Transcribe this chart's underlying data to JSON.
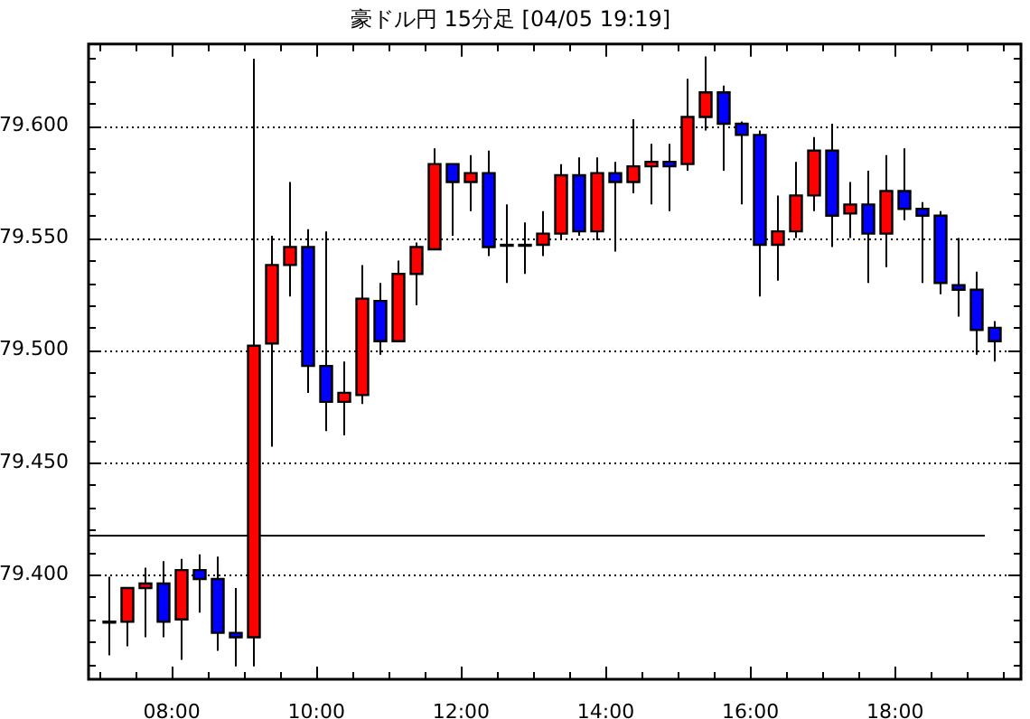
{
  "chart_data": {
    "type": "candlestick",
    "title": "豪ドル円 15分足 [04/05 19:19]",
    "x": [
      7.125,
      7.375,
      7.625,
      7.875,
      8.125,
      8.375,
      8.625,
      8.875,
      9.125,
      9.375,
      9.625,
      9.875,
      10.125,
      10.375,
      10.625,
      10.875,
      11.125,
      11.375,
      11.625,
      11.875,
      12.125,
      12.375,
      12.625,
      12.875,
      13.125,
      13.375,
      13.625,
      13.875,
      14.125,
      14.375,
      14.625,
      14.875,
      15.125,
      15.375,
      15.625,
      15.875,
      16.125,
      16.375,
      16.625,
      16.875,
      17.125,
      17.375,
      17.625,
      17.875,
      18.125,
      18.375,
      18.625,
      18.875,
      19.125,
      19.375
    ],
    "ohlc": [
      [
        79.379,
        79.399,
        79.364,
        79.379
      ],
      [
        79.379,
        79.394,
        79.368,
        79.394
      ],
      [
        79.394,
        79.403,
        79.372,
        79.396
      ],
      [
        79.396,
        79.406,
        79.372,
        79.379
      ],
      [
        79.38,
        79.407,
        79.362,
        79.402
      ],
      [
        79.402,
        79.409,
        79.383,
        79.398
      ],
      [
        79.398,
        79.408,
        79.366,
        79.374
      ],
      [
        79.374,
        79.394,
        79.359,
        79.372
      ],
      [
        79.372,
        79.63,
        79.359,
        79.502
      ],
      [
        79.503,
        79.551,
        79.457,
        79.538
      ],
      [
        79.538,
        79.575,
        79.524,
        79.546
      ],
      [
        79.546,
        79.554,
        79.481,
        79.493
      ],
      [
        79.493,
        79.553,
        79.464,
        79.477
      ],
      [
        79.477,
        79.495,
        79.462,
        79.481
      ],
      [
        79.48,
        79.538,
        79.476,
        79.523
      ],
      [
        79.522,
        79.53,
        79.498,
        79.504
      ],
      [
        79.504,
        79.54,
        79.504,
        79.534
      ],
      [
        79.534,
        79.548,
        79.52,
        79.546
      ],
      [
        79.545,
        79.59,
        79.545,
        79.583
      ],
      [
        79.583,
        79.583,
        79.551,
        79.575
      ],
      [
        79.575,
        79.587,
        79.562,
        79.579
      ],
      [
        79.579,
        79.589,
        79.542,
        79.546
      ],
      [
        79.547,
        79.565,
        79.53,
        79.547
      ],
      [
        79.547,
        79.557,
        79.534,
        79.547
      ],
      [
        79.547,
        79.562,
        79.542,
        79.552
      ],
      [
        79.552,
        79.583,
        79.549,
        79.578
      ],
      [
        79.578,
        79.586,
        79.551,
        79.553
      ],
      [
        79.553,
        79.586,
        79.549,
        79.579
      ],
      [
        79.579,
        79.584,
        79.544,
        79.575
      ],
      [
        79.575,
        79.603,
        79.57,
        79.582
      ],
      [
        79.582,
        79.592,
        79.565,
        79.584
      ],
      [
        79.584,
        79.592,
        79.562,
        79.582
      ],
      [
        79.583,
        79.621,
        79.58,
        79.604
      ],
      [
        79.604,
        79.631,
        79.598,
        79.615
      ],
      [
        79.615,
        79.618,
        79.58,
        79.601
      ],
      [
        79.601,
        79.602,
        79.565,
        79.596
      ],
      [
        79.596,
        79.598,
        79.524,
        79.547
      ],
      [
        79.547,
        79.569,
        79.531,
        79.553
      ],
      [
        79.553,
        79.584,
        79.55,
        79.569
      ],
      [
        79.569,
        79.595,
        79.562,
        79.589
      ],
      [
        79.589,
        79.601,
        79.546,
        79.56
      ],
      [
        79.561,
        79.575,
        79.55,
        79.565
      ],
      [
        79.565,
        79.58,
        79.53,
        79.552
      ],
      [
        79.552,
        79.587,
        79.537,
        79.571
      ],
      [
        79.571,
        79.59,
        79.558,
        79.563
      ],
      [
        79.563,
        79.566,
        79.53,
        79.56
      ],
      [
        79.56,
        79.562,
        79.525,
        79.53
      ],
      [
        79.529,
        79.55,
        79.515,
        79.527
      ],
      [
        79.527,
        79.535,
        79.498,
        79.509
      ],
      [
        79.51,
        79.513,
        79.495,
        79.504
      ]
    ],
    "colors": [
      "#000000",
      "#ff0000",
      "#ff0000",
      "#0000ff",
      "#ff0000",
      "#0000ff",
      "#0000ff",
      "#0000ff",
      "#ff0000",
      "#ff0000",
      "#ff0000",
      "#0000ff",
      "#0000ff",
      "#ff0000",
      "#ff0000",
      "#0000ff",
      "#ff0000",
      "#ff0000",
      "#ff0000",
      "#0000ff",
      "#ff0000",
      "#0000ff",
      "#000000",
      "#000000",
      "#ff0000",
      "#ff0000",
      "#0000ff",
      "#ff0000",
      "#0000ff",
      "#ff0000",
      "#ff0000",
      "#0000ff",
      "#ff0000",
      "#ff0000",
      "#0000ff",
      "#0000ff",
      "#0000ff",
      "#ff0000",
      "#ff0000",
      "#ff0000",
      "#0000ff",
      "#ff0000",
      "#0000ff",
      "#ff0000",
      "#0000ff",
      "#0000ff",
      "#0000ff",
      "#0000ff",
      "#0000ff",
      "#0000ff"
    ],
    "xlim": [
      6.85,
      19.74
    ],
    "xticks": [
      {
        "value": 7,
        "label": null
      },
      {
        "value": 7.5,
        "label": null
      },
      {
        "value": 8,
        "label": "08:00"
      },
      {
        "value": 8.5,
        "label": null
      },
      {
        "value": 9,
        "label": null
      },
      {
        "value": 9.5,
        "label": null
      },
      {
        "value": 10,
        "label": "10:00"
      },
      {
        "value": 10.5,
        "label": null
      },
      {
        "value": 11,
        "label": null
      },
      {
        "value": 11.5,
        "label": null
      },
      {
        "value": 12,
        "label": "12:00"
      },
      {
        "value": 12.5,
        "label": null
      },
      {
        "value": 13,
        "label": null
      },
      {
        "value": 13.5,
        "label": null
      },
      {
        "value": 14,
        "label": "14:00"
      },
      {
        "value": 14.5,
        "label": null
      },
      {
        "value": 15,
        "label": null
      },
      {
        "value": 15.5,
        "label": null
      },
      {
        "value": 16,
        "label": "16:00"
      },
      {
        "value": 16.5,
        "label": null
      },
      {
        "value": 17,
        "label": null
      },
      {
        "value": 17.5,
        "label": null
      },
      {
        "value": 18,
        "label": "18:00"
      },
      {
        "value": 18.5,
        "label": null
      },
      {
        "value": 19,
        "label": null
      },
      {
        "value": 19.5,
        "label": null
      }
    ],
    "ylim": [
      79.3533,
      79.6365
    ],
    "yticks": [
      {
        "value": 79.36,
        "label": null
      },
      {
        "value": 79.37,
        "label": null
      },
      {
        "value": 79.38,
        "label": null
      },
      {
        "value": 79.39,
        "label": null
      },
      {
        "value": 79.4,
        "label": "79.400"
      },
      {
        "value": 79.41,
        "label": null
      },
      {
        "value": 79.42,
        "label": null
      },
      {
        "value": 79.43,
        "label": null
      },
      {
        "value": 79.44,
        "label": null
      },
      {
        "value": 79.45,
        "label": "79.450"
      },
      {
        "value": 79.46,
        "label": null
      },
      {
        "value": 79.47,
        "label": null
      },
      {
        "value": 79.48,
        "label": null
      },
      {
        "value": 79.49,
        "label": null
      },
      {
        "value": 79.5,
        "label": "79.500"
      },
      {
        "value": 79.51,
        "label": null
      },
      {
        "value": 79.52,
        "label": null
      },
      {
        "value": 79.53,
        "label": null
      },
      {
        "value": 79.54,
        "label": null
      },
      {
        "value": 79.55,
        "label": "79.550"
      },
      {
        "value": 79.56,
        "label": null
      },
      {
        "value": 79.57,
        "label": null
      },
      {
        "value": 79.58,
        "label": null
      },
      {
        "value": 79.59,
        "label": null
      },
      {
        "value": 79.6,
        "label": "79.600"
      },
      {
        "value": 79.61,
        "label": null
      },
      {
        "value": 79.62,
        "label": null
      },
      {
        "value": 79.63,
        "label": null
      }
    ],
    "grid": "y",
    "ref_lines": [
      {
        "axis": "y",
        "value": 79.418,
        "color": "#000000",
        "line_style": "solid"
      }
    ]
  }
}
